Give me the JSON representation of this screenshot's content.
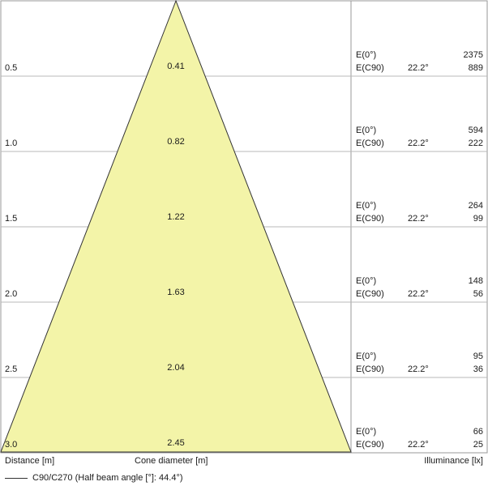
{
  "colors": {
    "cone_fill": "#f3f4a8",
    "cone_stroke": "#333333",
    "grid": "#b8b8b8",
    "frame": "#999999"
  },
  "rows": [
    {
      "distance": "0.5",
      "diameter": "0.41",
      "e0_label": "E(0°)",
      "e0_value": "2375",
      "ec90_label": "E(C90)",
      "angle": "22.2°",
      "ec90_value": "889"
    },
    {
      "distance": "1.0",
      "diameter": "0.82",
      "e0_label": "E(0°)",
      "e0_value": "594",
      "ec90_label": "E(C90)",
      "angle": "22.2°",
      "ec90_value": "222"
    },
    {
      "distance": "1.5",
      "diameter": "1.22",
      "e0_label": "E(0°)",
      "e0_value": "264",
      "ec90_label": "E(C90)",
      "angle": "22.2°",
      "ec90_value": "99"
    },
    {
      "distance": "2.0",
      "diameter": "1.63",
      "e0_label": "E(0°)",
      "e0_value": "148",
      "ec90_label": "E(C90)",
      "angle": "22.2°",
      "ec90_value": "56"
    },
    {
      "distance": "2.5",
      "diameter": "2.04",
      "e0_label": "E(0°)",
      "e0_value": "95",
      "ec90_label": "E(C90)",
      "angle": "22.2°",
      "ec90_value": "36"
    },
    {
      "distance": "3.0",
      "diameter": "2.45",
      "e0_label": "E(0°)",
      "e0_value": "66",
      "ec90_label": "E(C90)",
      "angle": "22.2°",
      "ec90_value": "25"
    }
  ],
  "footer": {
    "distance_label": "Distance [m]",
    "cone_label": "Cone diameter [m]",
    "illuminance_label": "Illuminance [lx]"
  },
  "legend": {
    "label": "C90/C270 (Half beam angle [°]: 44.4°)"
  }
}
